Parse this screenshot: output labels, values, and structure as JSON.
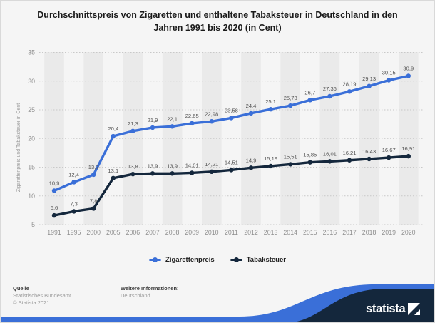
{
  "title": {
    "line1": "Durchschnittspreis von Zigaretten und enthaltene Tabaksteuer in Deutschland in den",
    "line2": "Jahren 1991 bis 2020 (in Cent)"
  },
  "chart_data": {
    "type": "line",
    "title": "Durchschnittspreis von Zigaretten und enthaltene Tabaksteuer in Deutschland in den Jahren 1991 bis 2020 (in Cent)",
    "xlabel": "",
    "ylabel": "Zigarettenpreis und Tabaksteuer in Cent",
    "ylim": [
      5,
      35
    ],
    "yticks": [
      5,
      10,
      15,
      20,
      25,
      30,
      35
    ],
    "grid": true,
    "legend_position": "bottom",
    "categories": [
      "1991",
      "1995",
      "2000",
      "2005",
      "2006",
      "2007",
      "2008",
      "2009",
      "2010",
      "2011",
      "2012",
      "2013",
      "2014",
      "2015",
      "2016",
      "2017",
      "2018",
      "2019",
      "2020"
    ],
    "series": [
      {
        "name": "Zigarettenpreis",
        "color": "#3a6fd8",
        "values": [
          10.9,
          12.4,
          13.7,
          20.4,
          21.3,
          21.9,
          22.1,
          22.65,
          22.98,
          23.58,
          24.4,
          25.1,
          25.73,
          26.7,
          27.36,
          28.19,
          29.13,
          30.15,
          30.9
        ],
        "labels": [
          "10,9",
          "12,4",
          "13,7",
          "20,4",
          "21,3",
          "21,9",
          "22,1",
          "22,65",
          "22,98",
          "23,58",
          "24,4",
          "25,1",
          "25,73",
          "26,7",
          "27,36",
          "28,19",
          "29,13",
          "30,15",
          "30,9"
        ]
      },
      {
        "name": "Tabaksteuer",
        "color": "#14273c",
        "values": [
          6.6,
          7.3,
          7.8,
          13.1,
          13.8,
          13.9,
          13.9,
          14.01,
          14.21,
          14.51,
          14.9,
          15.19,
          15.51,
          15.85,
          16.01,
          16.21,
          16.43,
          16.67,
          16.91
        ],
        "labels": [
          "6,6",
          "7,3",
          "7,8",
          "13,1",
          "13,8",
          "13,9",
          "13,9",
          "14,01",
          "14,21",
          "14,51",
          "14,9",
          "15,19",
          "15,51",
          "15,85",
          "16,01",
          "16,21",
          "16,43",
          "16,67",
          "16,91"
        ]
      }
    ]
  },
  "footer": {
    "source_heading": "Quelle",
    "source": "Statistisches Bundesamt",
    "copyright": "© Statista 2021",
    "info_heading": "Weitere Informationen:",
    "info": "Deutschland",
    "brand": "statista"
  },
  "colors": {
    "background": "#f5f5f5",
    "band": "#eaeaea",
    "grid": "#c8c8c8",
    "blue": "#3a6fd8",
    "navy": "#14273c",
    "bottom_bar": "#3a6fd8",
    "bottom_bar_dark": "#2a59b0"
  }
}
